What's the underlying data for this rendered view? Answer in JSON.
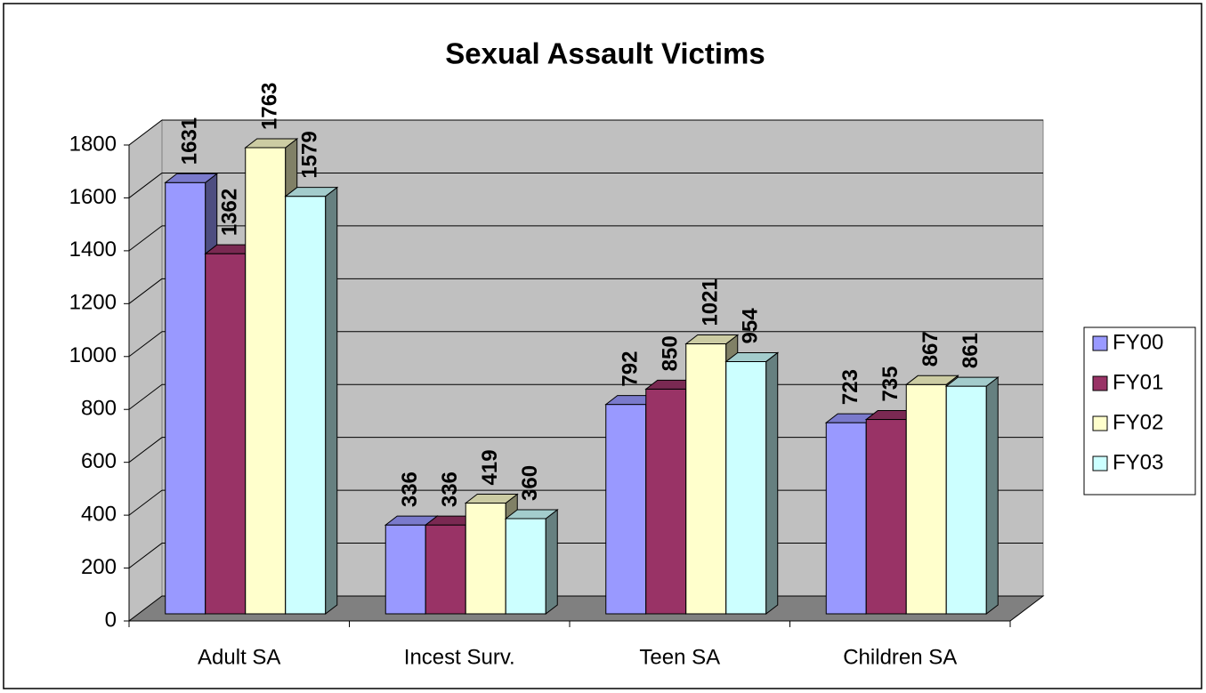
{
  "chart_data": {
    "type": "bar3d",
    "title": "Sexual Assault Victims",
    "categories": [
      "Adult SA",
      "Incest Surv.",
      "Teen SA",
      "Children SA"
    ],
    "series": [
      {
        "name": "FY00",
        "color": "#9999ff",
        "values": [
          1631,
          336,
          792,
          723
        ]
      },
      {
        "name": "FY01",
        "color": "#993366",
        "values": [
          1362,
          336,
          850,
          735
        ]
      },
      {
        "name": "FY02",
        "color": "#ffffcc",
        "values": [
          1763,
          419,
          1021,
          867
        ]
      },
      {
        "name": "FY03",
        "color": "#ccffff",
        "values": [
          1579,
          360,
          954,
          861
        ]
      }
    ],
    "ylim": [
      0,
      1800
    ],
    "yticks": [
      0,
      200,
      400,
      600,
      800,
      1000,
      1200,
      1400,
      1600,
      1800
    ],
    "grid": true,
    "legend": "right"
  }
}
